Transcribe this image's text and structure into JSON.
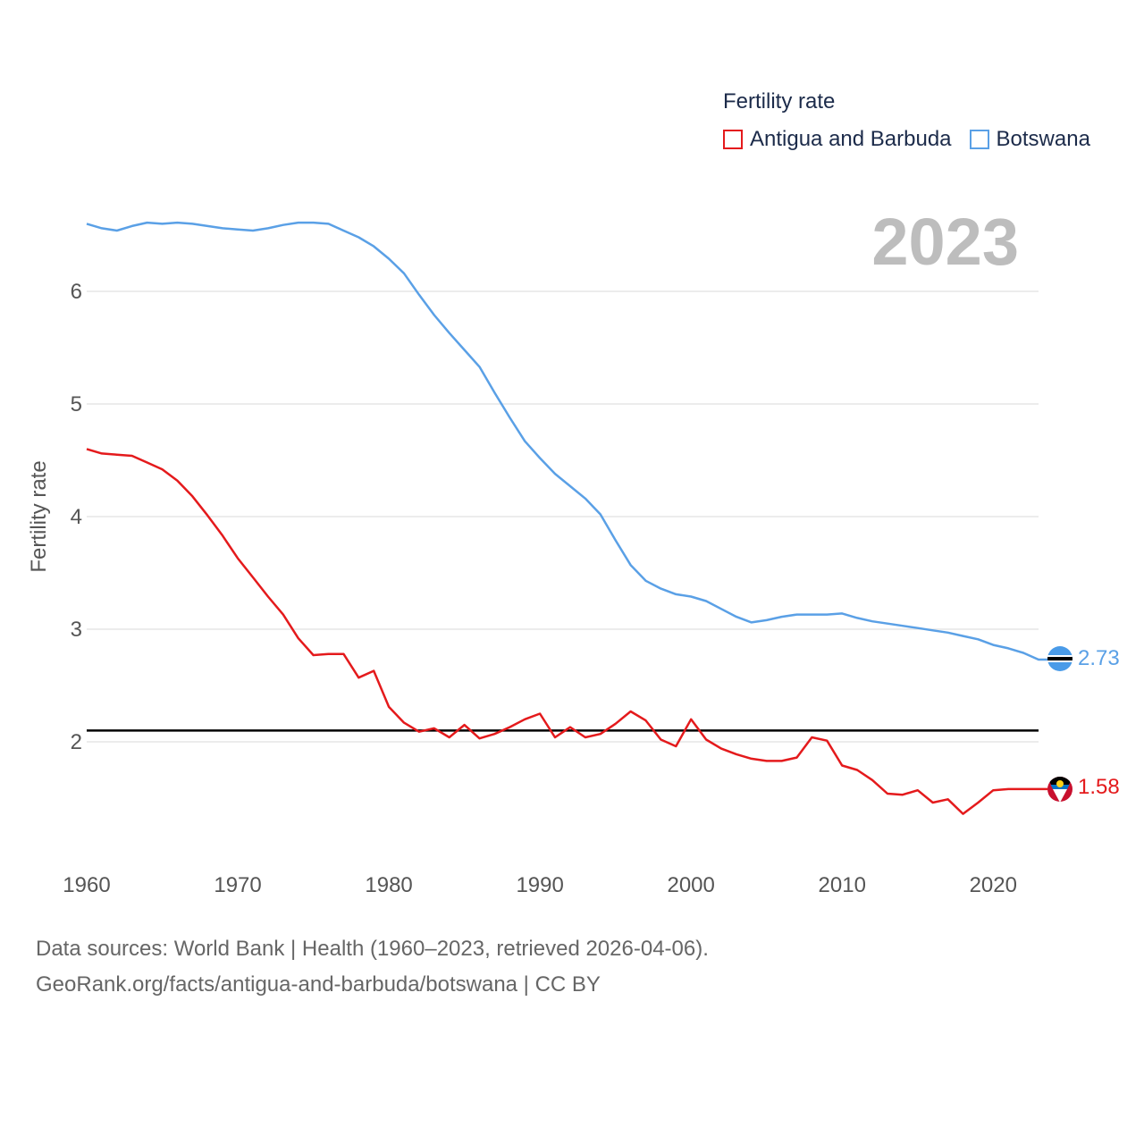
{
  "legend": {
    "title": "Fertility rate",
    "items": [
      {
        "label": "Antigua and Barbuda",
        "color": "#e41a1c"
      },
      {
        "label": "Botswana",
        "color": "#5aa0e6"
      }
    ]
  },
  "year_label": "2023",
  "footer": {
    "line1": "Data sources: World Bank | Health (1960–2023, retrieved 2026-04-06).",
    "line2": "GeoRank.org/facts/antigua-and-barbuda/botswana | CC BY"
  },
  "end_labels": {
    "antigua": "1.58",
    "botswana": "2.73"
  },
  "chart_data": {
    "type": "line",
    "title": "",
    "xlabel": "",
    "ylabel": "Fertility rate",
    "xlim": [
      1960,
      2023
    ],
    "ylim": [
      1.0,
      6.9
    ],
    "x_ticks": [
      1960,
      1970,
      1980,
      1990,
      2000,
      2010,
      2020
    ],
    "y_ticks": [
      2,
      3,
      4,
      5,
      6
    ],
    "reference_line": 2.1,
    "x": [
      1960,
      1961,
      1962,
      1963,
      1964,
      1965,
      1966,
      1967,
      1968,
      1969,
      1970,
      1971,
      1972,
      1973,
      1974,
      1975,
      1976,
      1977,
      1978,
      1979,
      1980,
      1981,
      1982,
      1983,
      1984,
      1985,
      1986,
      1987,
      1988,
      1989,
      1990,
      1991,
      1992,
      1993,
      1994,
      1995,
      1996,
      1997,
      1998,
      1999,
      2000,
      2001,
      2002,
      2003,
      2004,
      2005,
      2006,
      2007,
      2008,
      2009,
      2010,
      2011,
      2012,
      2013,
      2014,
      2015,
      2016,
      2017,
      2018,
      2019,
      2020,
      2021,
      2022,
      2023
    ],
    "series": [
      {
        "name": "Antigua and Barbuda",
        "color": "#e41a1c",
        "values": [
          4.6,
          4.56,
          4.55,
          4.54,
          4.48,
          4.42,
          4.32,
          4.18,
          4.01,
          3.83,
          3.63,
          3.46,
          3.29,
          3.13,
          2.92,
          2.77,
          2.78,
          2.78,
          2.57,
          2.63,
          2.31,
          2.17,
          2.09,
          2.12,
          2.04,
          2.15,
          2.03,
          2.07,
          2.13,
          2.2,
          2.25,
          2.04,
          2.13,
          2.04,
          2.07,
          2.16,
          2.27,
          2.19,
          2.02,
          1.96,
          2.2,
          2.02,
          1.94,
          1.89,
          1.85,
          1.83,
          1.83,
          1.86,
          2.04,
          2.01,
          1.79,
          1.75,
          1.66,
          1.54,
          1.53,
          1.57,
          1.46,
          1.49,
          1.36,
          1.46,
          1.57,
          1.58,
          1.58,
          1.58
        ]
      },
      {
        "name": "Botswana",
        "color": "#5aa0e6",
        "values": [
          6.6,
          6.56,
          6.54,
          6.58,
          6.61,
          6.6,
          6.61,
          6.6,
          6.58,
          6.56,
          6.55,
          6.54,
          6.56,
          6.59,
          6.61,
          6.61,
          6.6,
          6.54,
          6.48,
          6.4,
          6.29,
          6.16,
          5.97,
          5.79,
          5.63,
          5.48,
          5.33,
          5.1,
          4.88,
          4.67,
          4.52,
          4.38,
          4.27,
          4.16,
          4.02,
          3.79,
          3.57,
          3.43,
          3.36,
          3.31,
          3.29,
          3.25,
          3.18,
          3.11,
          3.06,
          3.08,
          3.11,
          3.13,
          3.13,
          3.13,
          3.14,
          3.1,
          3.07,
          3.05,
          3.03,
          3.01,
          2.99,
          2.97,
          2.94,
          2.91,
          2.86,
          2.83,
          2.79,
          2.73
        ]
      }
    ]
  }
}
